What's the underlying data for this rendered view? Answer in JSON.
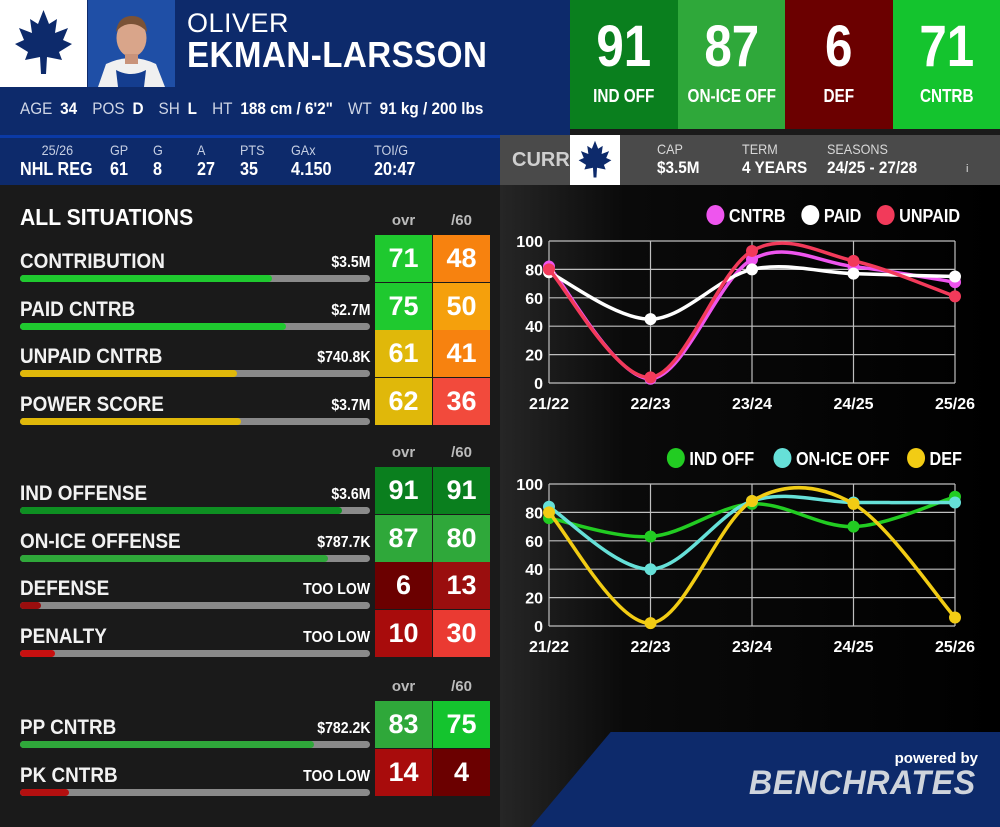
{
  "player": {
    "first_name": "OLIVER",
    "last_name": "EKMAN-LARSSON",
    "bio": [
      {
        "key": "AGE",
        "value": "34"
      },
      {
        "key": "POS",
        "value": "D"
      },
      {
        "key": "SH",
        "value": "L"
      },
      {
        "key": "HT",
        "value": "188 cm / 6'2\""
      },
      {
        "key": "WT",
        "value": "91 kg / 200 lbs"
      }
    ]
  },
  "team_logo": {
    "text": "TORONTO MAPLE LEAFS",
    "color": "#0d2a6b"
  },
  "tiles": [
    {
      "value": "91",
      "label": "IND OFF",
      "color": "#0a7f1e"
    },
    {
      "value": "87",
      "label": "ON-ICE OFF",
      "color": "#2fa83a"
    },
    {
      "value": "6",
      "label": "DEF",
      "color": "#6b0000"
    },
    {
      "value": "71",
      "label": "CNTRB",
      "color": "#14c42e"
    }
  ],
  "season_stats": [
    {
      "key": "25/26",
      "value": "NHL REG"
    },
    {
      "key": "GP",
      "value": "61"
    },
    {
      "key": "G",
      "value": "8"
    },
    {
      "key": "A",
      "value": "27"
    },
    {
      "key": "PTS",
      "value": "35"
    },
    {
      "key": "GAx",
      "value": "4.150"
    },
    {
      "key": "TOI/G",
      "value": "20:47"
    }
  ],
  "contract": {
    "curr_label": "CURR",
    "cap_label": "CAP",
    "cap": "$3.5M",
    "term_label": "TERM",
    "term": "4 YEARS",
    "seasons_label": "SEASONS",
    "seasons": "24/25 - 27/28",
    "info": "i"
  },
  "section_title": "ALL SITUATIONS",
  "column_headers": {
    "ovr": "ovr",
    "per60": "/60"
  },
  "metric_groups": [
    [
      {
        "name": "CONTRIBUTION",
        "value": "$3.5M",
        "ovr": "71",
        "per60": "48",
        "level": 0.72,
        "bar": "#1fc92f",
        "c1": "#1fc92f",
        "c2": "#f7820f"
      },
      {
        "name": "PAID CNTRB",
        "value": "$2.7M",
        "ovr": "75",
        "per60": "50",
        "level": 0.76,
        "bar": "#1fc92f",
        "c1": "#1fc92f",
        "c2": "#f5a00c"
      },
      {
        "name": "UNPAID CNTRB",
        "value": "$740.8K",
        "ovr": "61",
        "per60": "41",
        "level": 0.62,
        "bar": "#e0b80a",
        "c1": "#e0b80a",
        "c2": "#f7820f"
      },
      {
        "name": "POWER SCORE",
        "value": "$3.7M",
        "ovr": "62",
        "per60": "36",
        "level": 0.63,
        "bar": "#e0b80a",
        "c1": "#e0b80a",
        "c2": "#f24a3c"
      }
    ],
    [
      {
        "name": "IND OFFENSE",
        "value": "$3.6M",
        "ovr": "91",
        "per60": "91",
        "level": 0.92,
        "bar": "#0e8f22",
        "c1": "#0a7f1e",
        "c2": "#0a7f1e"
      },
      {
        "name": "ON-ICE OFFENSE",
        "value": "$787.7K",
        "ovr": "87",
        "per60": "80",
        "level": 0.88,
        "bar": "#2fa83a",
        "c1": "#2fa83a",
        "c2": "#2fa83a"
      },
      {
        "name": "DEFENSE",
        "value": "TOO LOW",
        "ovr": "6",
        "per60": "13",
        "level": 0.06,
        "bar": "#9a0e0e",
        "c1": "#6b0000",
        "c2": "#9a0e0e"
      },
      {
        "name": "PENALTY",
        "value": "TOO LOW",
        "ovr": "10",
        "per60": "30",
        "level": 0.1,
        "bar": "#c81010",
        "c1": "#a80c0c",
        "c2": "#ea3a32"
      }
    ],
    [
      {
        "name": "PP CNTRB",
        "value": "$782.2K",
        "ovr": "83",
        "per60": "75",
        "level": 0.84,
        "bar": "#2fa83a",
        "c1": "#2fa83a",
        "c2": "#14c42e"
      },
      {
        "name": "PK CNTRB",
        "value": "TOO LOW",
        "ovr": "14",
        "per60": "4",
        "level": 0.14,
        "bar": "#b31010",
        "c1": "#a80c0c",
        "c2": "#6b0000"
      }
    ]
  ],
  "chart_data": [
    {
      "type": "line",
      "categories": [
        "21/22",
        "22/23",
        "23/24",
        "24/25",
        "25/26"
      ],
      "ylim": [
        0,
        100
      ],
      "yticks": [
        0,
        20,
        40,
        60,
        80,
        100
      ],
      "legend_position": "top-right",
      "grid": true,
      "series": [
        {
          "name": "CNTRB",
          "color": "#ee55ee",
          "values": [
            82,
            3,
            87,
            82,
            71
          ]
        },
        {
          "name": "PAID",
          "color": "#ffffff",
          "values": [
            78,
            45,
            80,
            77,
            75
          ]
        },
        {
          "name": "UNPAID",
          "color": "#f23a5a",
          "values": [
            80,
            4,
            93,
            86,
            61
          ]
        }
      ]
    },
    {
      "type": "line",
      "categories": [
        "21/22",
        "22/23",
        "23/24",
        "24/25",
        "25/26"
      ],
      "ylim": [
        0,
        100
      ],
      "yticks": [
        0,
        20,
        40,
        60,
        80,
        100
      ],
      "legend_position": "top-right",
      "grid": true,
      "series": [
        {
          "name": "IND OFF",
          "color": "#22cc22",
          "values": [
            76,
            63,
            86,
            70,
            91
          ]
        },
        {
          "name": "ON-ICE OFF",
          "color": "#66e0d8",
          "values": [
            84,
            40,
            88,
            87,
            87
          ]
        },
        {
          "name": "DEF",
          "color": "#f2cc14",
          "values": [
            80,
            2,
            88,
            86,
            6
          ]
        }
      ]
    }
  ],
  "branding": {
    "powered": "powered by",
    "name": "BENCHRATES"
  }
}
